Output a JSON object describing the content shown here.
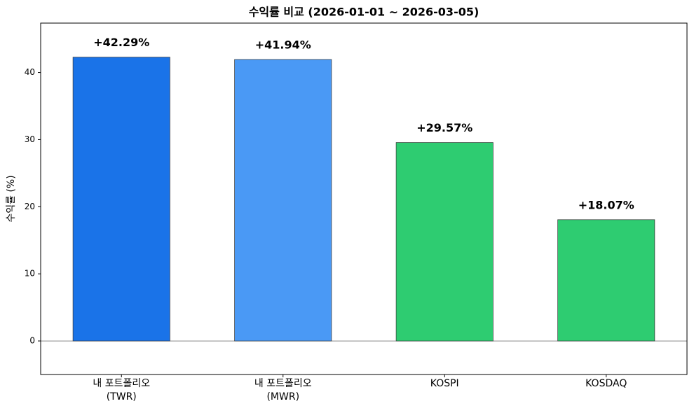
{
  "chart_data": {
    "type": "bar",
    "title": "수익률 비교 (2026-01-01 ~ 2026-03-05)",
    "ylabel": "수익률 (%)",
    "categories": [
      "내 포트폴리오\n(TWR)",
      "내 포트폴리오\n(MWR)",
      "KOSPI",
      "KOSDAQ"
    ],
    "values": [
      42.29,
      41.94,
      29.57,
      18.07
    ],
    "value_labels": [
      "+42.29%",
      "+41.94%",
      "+29.57%",
      "+18.07%"
    ],
    "colors": [
      "#1a73e8",
      "#4a99f5",
      "#2ecc71",
      "#2ecc71"
    ],
    "ylim": [
      -5,
      47.36
    ],
    "yticks": [
      0,
      10,
      20,
      30,
      40
    ],
    "grid": false
  }
}
